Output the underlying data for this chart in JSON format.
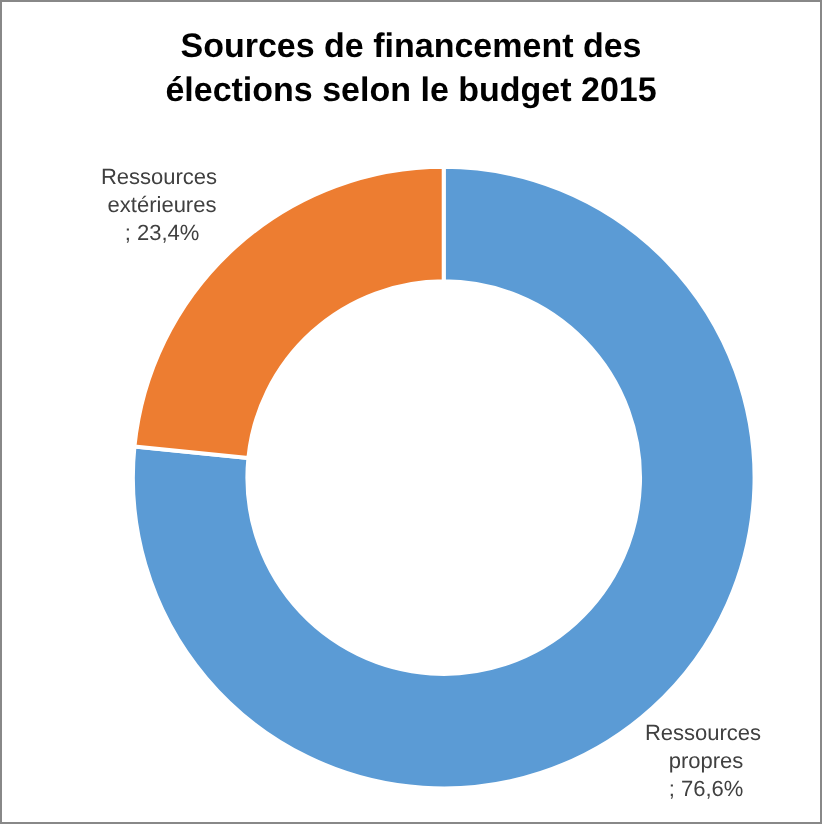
{
  "chart_data": {
    "type": "donut",
    "title": "Sources de financement des\nélections selon le budget 2015",
    "categories": [
      "Ressources propres",
      "Ressources extérieures"
    ],
    "values": [
      76.6,
      23.4
    ],
    "colors": [
      "#5b9bd5",
      "#ed7d31"
    ],
    "value_labels": [
      "; 76,6%",
      "; 23,4%"
    ],
    "legend": false
  }
}
